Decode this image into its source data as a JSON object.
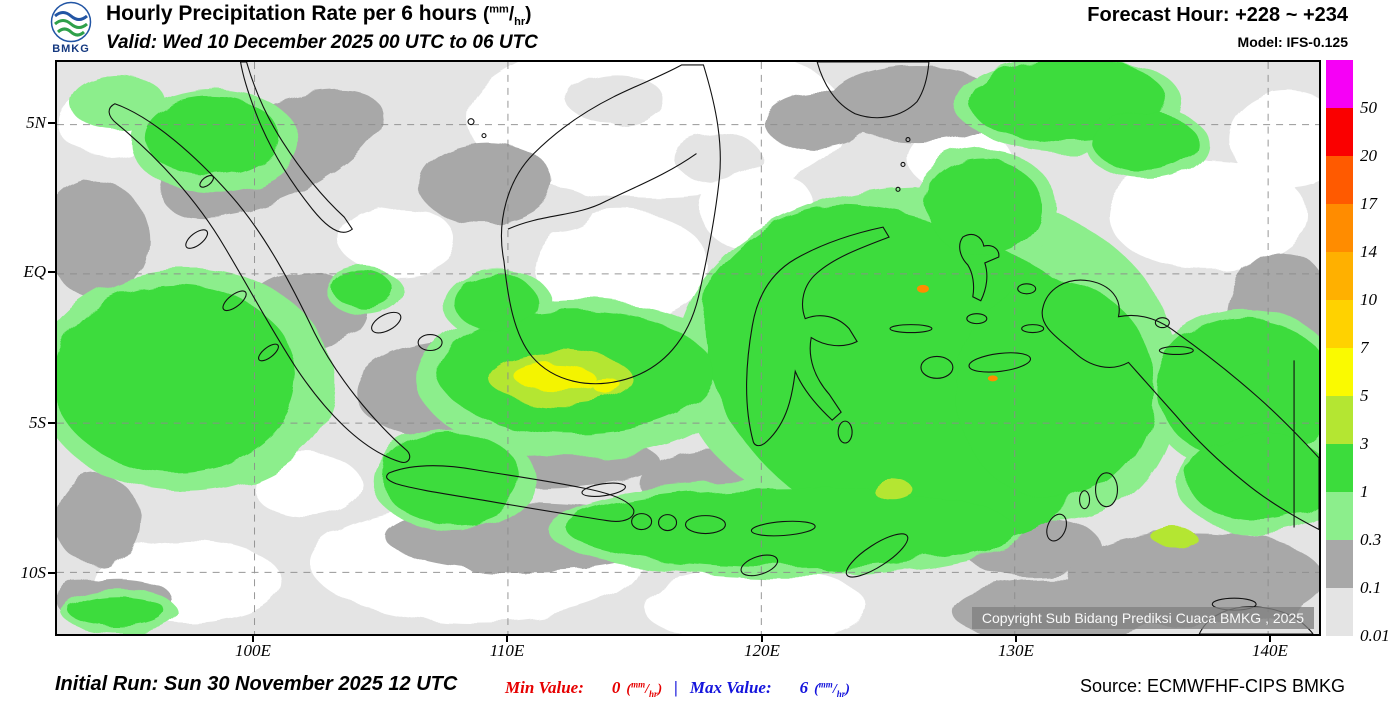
{
  "header": {
    "logo_text": "BMKG",
    "title": "Hourly Precipitation Rate per 6 hours",
    "valid": "Valid: Wed 10 December 2025 00 UTC to 06 UTC",
    "forecast_hour": "Forecast Hour: +228 ~ +234",
    "model": "Model: IFS-0.125"
  },
  "unit": {
    "open": "(",
    "sup": "mm",
    "slash": "/",
    "sub": "hr",
    "close": ")"
  },
  "map": {
    "lat_labels": [
      "5N",
      "EQ",
      "5S",
      "10S"
    ],
    "lon_labels": [
      "100E",
      "110E",
      "120E",
      "130E",
      "140E"
    ],
    "copyright": "Copyright Sub Bidang Prediksi Cuaca BMKG , 2025"
  },
  "colorbar": {
    "segments": [
      {
        "label": "50",
        "color": "#f600f6"
      },
      {
        "label": "20",
        "color": "#fa0000"
      },
      {
        "label": "17",
        "color": "#ff5a00"
      },
      {
        "label": "14",
        "color": "#ff8c00"
      },
      {
        "label": "10",
        "color": "#ffb000"
      },
      {
        "label": "7",
        "color": "#ffd200"
      },
      {
        "label": "5",
        "color": "#fafa00"
      },
      {
        "label": "3",
        "color": "#b4e632"
      },
      {
        "label": "1",
        "color": "#3cdc3c"
      },
      {
        "label": "0.3",
        "color": "#8cee8c"
      },
      {
        "label": "0.1",
        "color": "#a8a8a8"
      },
      {
        "label": "0.01",
        "color": "#e4e4e4"
      }
    ]
  },
  "footer": {
    "initial_run": "Initial Run: Sun 30 November 2025 12 UTC",
    "min_label": "Min Value:",
    "min_value": "0",
    "separator": "|",
    "max_label": "Max Value:",
    "max_value": "6",
    "source": "Source: ECMWFHF-CIPS BMKG"
  }
}
